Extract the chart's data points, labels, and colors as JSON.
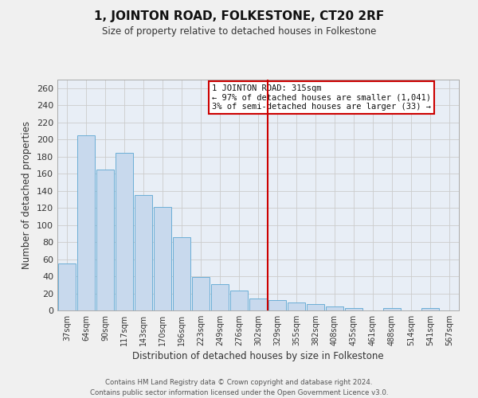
{
  "title": "1, JOINTON ROAD, FOLKESTONE, CT20 2RF",
  "subtitle": "Size of property relative to detached houses in Folkestone",
  "xlabel": "Distribution of detached houses by size in Folkestone",
  "ylabel": "Number of detached properties",
  "categories": [
    "37sqm",
    "64sqm",
    "90sqm",
    "117sqm",
    "143sqm",
    "170sqm",
    "196sqm",
    "223sqm",
    "249sqm",
    "276sqm",
    "302sqm",
    "329sqm",
    "355sqm",
    "382sqm",
    "408sqm",
    "435sqm",
    "461sqm",
    "488sqm",
    "514sqm",
    "541sqm",
    "567sqm"
  ],
  "values": [
    55,
    205,
    165,
    184,
    135,
    121,
    86,
    39,
    31,
    23,
    14,
    12,
    9,
    7,
    5,
    3,
    0,
    3,
    0,
    3,
    0
  ],
  "bar_color": "#c8d9ed",
  "bar_edge_color": "#6baed6",
  "grid_color": "#cccccc",
  "background_color": "#e8eef6",
  "fig_background": "#f0f0f0",
  "annotation_box_color": "#ffffff",
  "annotation_border_color": "#cc0000",
  "vline_color": "#cc0000",
  "vline_x": 10.5,
  "annotation_title": "1 JOINTON ROAD: 315sqm",
  "annotation_line1": "← 97% of detached houses are smaller (1,041)",
  "annotation_line2": "3% of semi-detached houses are larger (33) →",
  "footer_line1": "Contains HM Land Registry data © Crown copyright and database right 2024.",
  "footer_line2": "Contains public sector information licensed under the Open Government Licence v3.0.",
  "ylim": [
    0,
    270
  ],
  "yticks": [
    0,
    20,
    40,
    60,
    80,
    100,
    120,
    140,
    160,
    180,
    200,
    220,
    240,
    260
  ]
}
